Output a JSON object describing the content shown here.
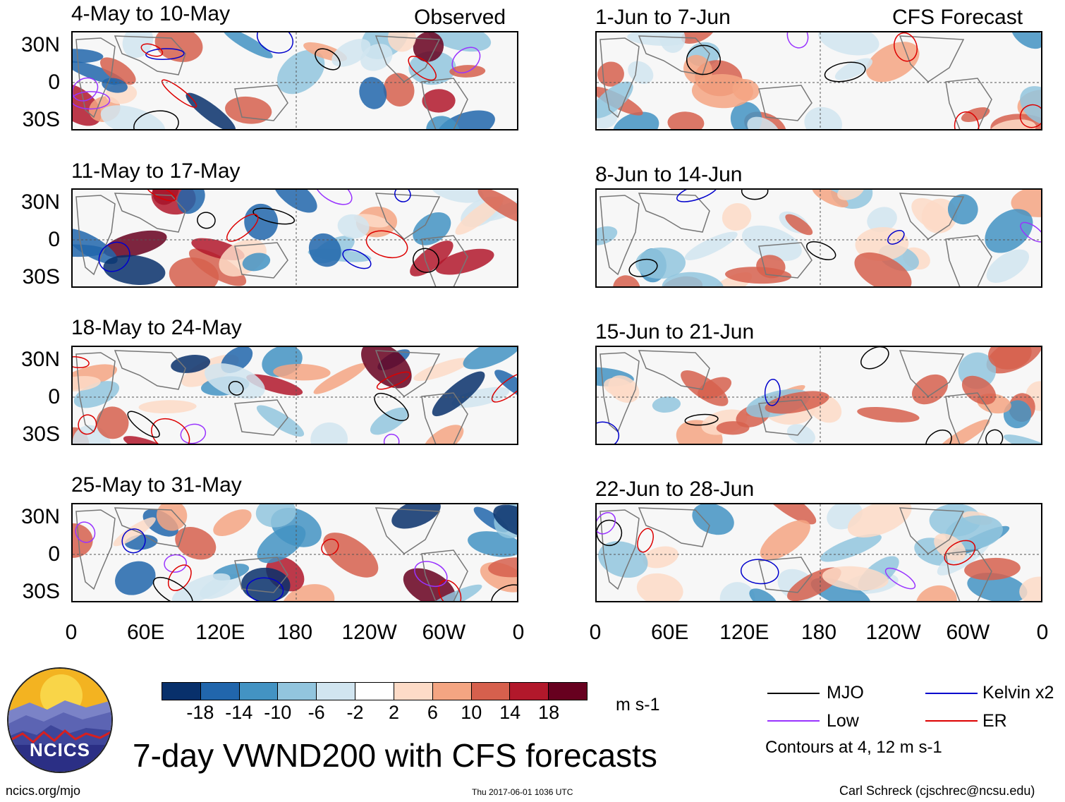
{
  "header": {
    "observed_tag": "Observed",
    "forecast_tag": "CFS Forecast"
  },
  "observed_panels": [
    {
      "title": "4-May to 10-May"
    },
    {
      "title": "11-May to 17-May"
    },
    {
      "title": "18-May to 24-May"
    },
    {
      "title": "25-May to 31-May"
    }
  ],
  "forecast_panels": [
    {
      "title": "1-Jun to 7-Jun"
    },
    {
      "title": "8-Jun to 14-Jun"
    },
    {
      "title": "15-Jun to 21-Jun"
    },
    {
      "title": "22-Jun to 28-Jun"
    }
  ],
  "axes": {
    "lat_labels": [
      "30N",
      "0",
      "30S"
    ],
    "lon_labels": [
      "0",
      "60E",
      "120E",
      "180",
      "120W",
      "60W",
      "0"
    ]
  },
  "colorbar": {
    "ticks": [
      "-18",
      "-14",
      "-10",
      "-6",
      "-2",
      "2",
      "6",
      "10",
      "14",
      "18"
    ],
    "colors": [
      "#08306b",
      "#2166ac",
      "#4393c3",
      "#92c5de",
      "#d1e5f0",
      "#ffffff",
      "#fddbc7",
      "#f4a582",
      "#d6604d",
      "#b2182b",
      "#67001f"
    ],
    "units": "m s-1"
  },
  "legend": {
    "items": [
      {
        "label": "MJO",
        "color": "#000000"
      },
      {
        "label": "Kelvin x2",
        "color": "#0000cc"
      },
      {
        "label": "Low",
        "color": "#9933ff"
      },
      {
        "label": "ER",
        "color": "#dd0000"
      }
    ],
    "note": "Contours at 4, 12 m s-1"
  },
  "footer": {
    "main_title": "7-day VWND200 with CFS forecasts",
    "url": "ncics.org/mjo",
    "timestamp": "Thu 2017-06-01 1036 UTC",
    "credit": "Carl Schreck (cjschrec@ncsu.edu)",
    "logo_text": "NCICS"
  }
}
